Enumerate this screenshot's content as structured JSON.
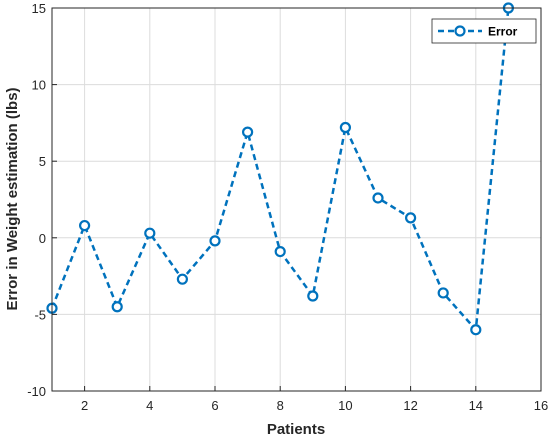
{
  "chart_data": {
    "type": "line",
    "xlabel": "Patients",
    "ylabel": "Error in Weight estimation (lbs)",
    "xlim": [
      1,
      16
    ],
    "ylim": [
      -10,
      15
    ],
    "xticks": [
      2,
      4,
      6,
      8,
      10,
      12,
      14,
      16
    ],
    "yticks": [
      -10,
      -5,
      0,
      5,
      10,
      15
    ],
    "grid": true,
    "legend_position": "top-right",
    "series": [
      {
        "name": "Error",
        "color": "#0072BD",
        "line_style": "dashed",
        "marker": "circle",
        "x": [
          1,
          2,
          3,
          4,
          5,
          6,
          7,
          8,
          9,
          10,
          11,
          12,
          13,
          14,
          15
        ],
        "y": [
          -4.6,
          0.8,
          -4.5,
          0.3,
          -2.7,
          -0.2,
          6.9,
          -0.9,
          -3.8,
          7.2,
          2.6,
          1.3,
          -3.6,
          -6.0,
          15.0
        ]
      }
    ]
  }
}
